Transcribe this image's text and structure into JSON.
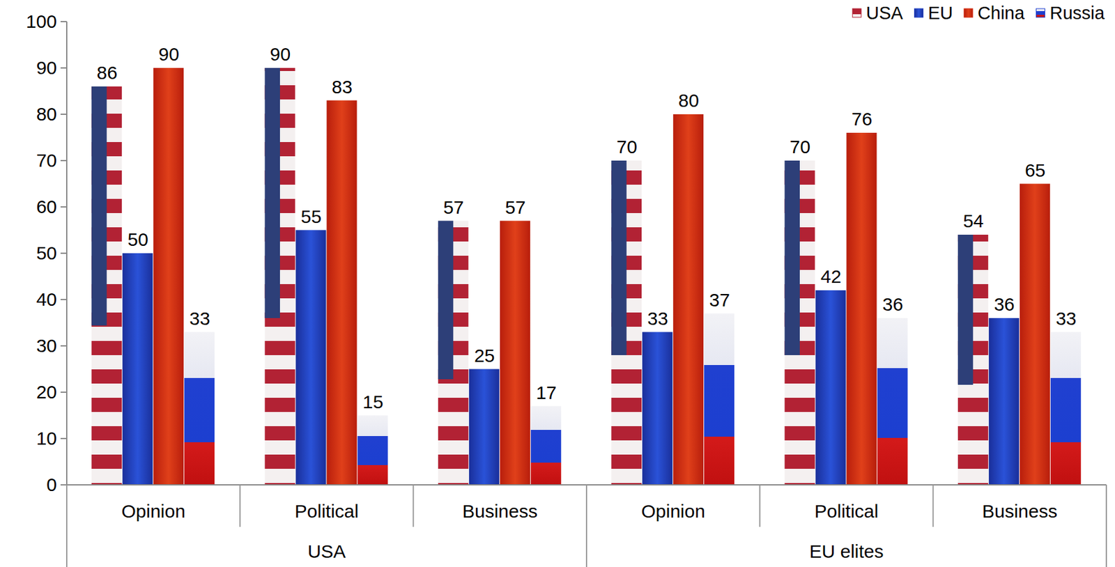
{
  "chart_data": {
    "type": "bar",
    "categories": [
      "Opinion",
      "Political",
      "Business",
      "Opinion",
      "Political",
      "Business"
    ],
    "category_groups": [
      "USA",
      "USA",
      "USA",
      "EU elites",
      "EU elites",
      "EU elites"
    ],
    "series": [
      {
        "name": "USA",
        "color": "#b22234",
        "values": [
          86,
          90,
          57,
          70,
          70,
          54
        ]
      },
      {
        "name": "EU",
        "color": "#1f3fbf",
        "values": [
          50,
          55,
          25,
          33,
          42,
          36
        ]
      },
      {
        "name": "China",
        "color": "#d42a10",
        "values": [
          90,
          83,
          57,
          80,
          76,
          65
        ]
      },
      {
        "name": "Russia",
        "color": "#1c3fd0",
        "values": [
          33,
          15,
          17,
          37,
          36,
          33
        ]
      }
    ],
    "ylim": [
      0,
      100
    ],
    "yticks": [
      0,
      10,
      20,
      30,
      40,
      50,
      60,
      70,
      80,
      90,
      100
    ],
    "grid": false,
    "legend": "top-right",
    "data_labels": true
  }
}
